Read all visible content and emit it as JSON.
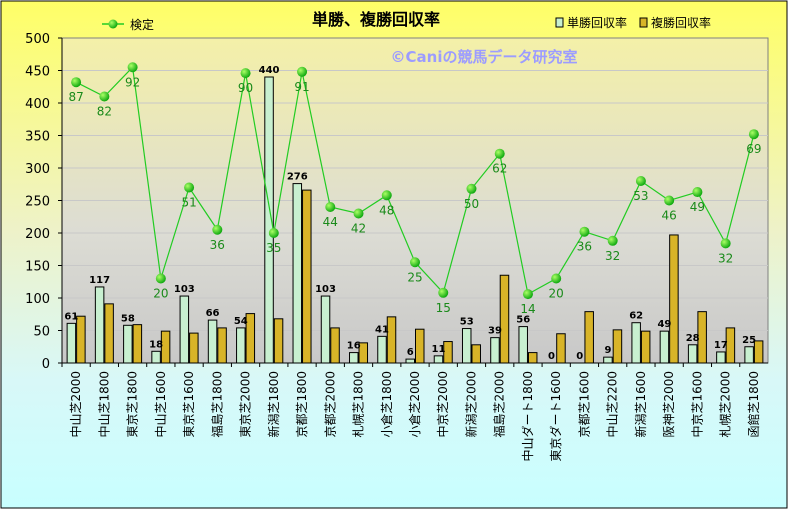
{
  "chart_data": {
    "type": "bar",
    "title": "単勝、複勝回収率",
    "watermark": "©Caniの競馬データ研究室",
    "ylim": [
      0,
      500
    ],
    "yticks": [
      0,
      50,
      100,
      150,
      200,
      250,
      300,
      350,
      400,
      450,
      500
    ],
    "legend_position": "top",
    "categories": [
      "中山芝2000",
      "中山芝1800",
      "東京芝1800",
      "中山芝1600",
      "東京芝1600",
      "福島芝1800",
      "東京芝2000",
      "新潟芝1800",
      "京都芝1800",
      "京都芝2000",
      "札幌芝1800",
      "小倉芝1800",
      "小倉芝2000",
      "中京芝2000",
      "新潟芝2000",
      "福島芝2000",
      "中山ダート1800",
      "東京ダート1600",
      "京都芝1600",
      "中山芝2200",
      "新潟芝1600",
      "阪神芝2000",
      "中京芝1600",
      "札幌芝2000",
      "函館芝1800"
    ],
    "series": [
      {
        "name": "単勝回収率",
        "color": "#c8f0d0",
        "values": [
          61,
          117,
          58,
          18,
          103,
          66,
          54,
          440,
          276,
          103,
          16,
          41,
          6,
          11,
          53,
          39,
          56,
          0,
          0,
          9,
          62,
          49,
          28,
          17,
          25
        ],
        "labels": [
          "61",
          "117",
          "58",
          "18",
          "103",
          "66",
          "54",
          "440",
          "276",
          "103",
          "16",
          "41",
          "6",
          "11",
          "53",
          "39",
          "56",
          "0",
          "0",
          "9",
          "62",
          "49",
          "28",
          "17",
          "25"
        ]
      },
      {
        "name": "複勝回収率",
        "color": "#d8b428",
        "values": [
          72,
          91,
          59,
          49,
          46,
          54,
          76,
          68,
          266,
          54,
          31,
          71,
          52,
          33,
          28,
          135,
          16,
          45,
          79,
          51,
          49,
          197,
          79,
          54,
          34
        ]
      },
      {
        "name": "検定",
        "type": "line",
        "color": "#22cc22",
        "axis_values": [
          432,
          410,
          455,
          130,
          270,
          205,
          446,
          200,
          448,
          240,
          230,
          258,
          155,
          108,
          268,
          322,
          106,
          130,
          202,
          188,
          280,
          250,
          263,
          184,
          352
        ],
        "labels": [
          "87",
          "82",
          "92",
          "20",
          "51",
          "36",
          "90",
          "35",
          "91",
          "44",
          "42",
          "48",
          "25",
          "15",
          "50",
          "62",
          "14",
          "20",
          "36",
          "32",
          "53",
          "46",
          "49",
          "32",
          "69"
        ]
      }
    ]
  }
}
